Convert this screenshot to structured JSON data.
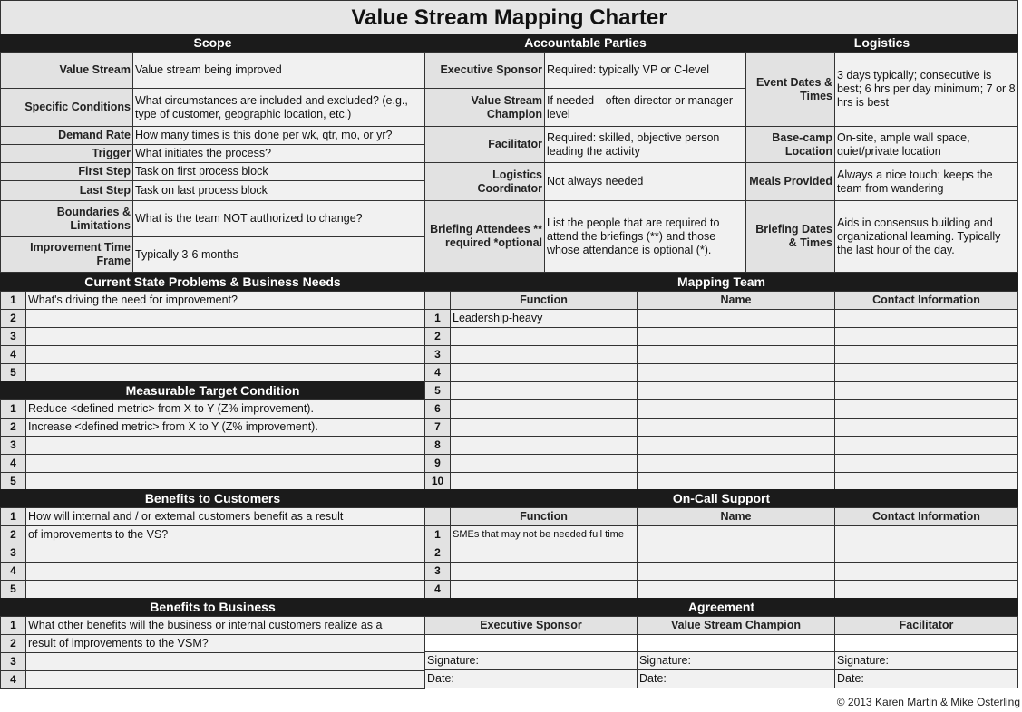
{
  "title": "Value Stream Mapping Charter",
  "sections": {
    "scope": "Scope",
    "accountable": "Accountable Parties",
    "logistics": "Logistics",
    "current_state": "Current State Problems & Business Needs",
    "mapping_team": "Mapping Team",
    "target": "Measurable Target Condition",
    "benefits_customers": "Benefits to Customers",
    "on_call": "On-Call Support",
    "benefits_business": "Benefits to Business",
    "agreement": "Agreement"
  },
  "scope": [
    {
      "label": "Value Stream",
      "value": "Value stream being improved"
    },
    {
      "label": "Specific Conditions",
      "value": "What circumstances are included and excluded? (e.g., type of customer, geographic location, etc.)"
    },
    {
      "label": "Demand Rate",
      "value": "How many times is this done per wk, qtr, mo, or yr?"
    },
    {
      "label": "Trigger",
      "value": "What initiates the process?"
    },
    {
      "label": "First Step",
      "value": "Task on first process block"
    },
    {
      "label": "Last Step",
      "value": "Task on last process block"
    },
    {
      "label": "Boundaries & Limitations",
      "value": "What is the team NOT authorized to change?"
    },
    {
      "label": "Improvement Time Frame",
      "value": "Typically 3-6 months"
    }
  ],
  "accountable": [
    {
      "label": "Executive Sponsor",
      "value": "Required: typically VP or  C-level"
    },
    {
      "label": "Value Stream Champion",
      "value": "If needed—often director or manager level"
    },
    {
      "label": "Facilitator",
      "value": "Required: skilled, objective person leading the activity"
    },
    {
      "label": "Logistics Coordinator",
      "value": "Not always needed"
    },
    {
      "label": "Briefing Attendees ** required *optional",
      "value": "List the people that are required to attend the briefings (**) and those whose attendance is optional (*)."
    }
  ],
  "logistics": [
    {
      "label": "Event Dates & Times",
      "value": "3 days typically; consecutive is best; 6 hrs per day minimum; 7 or 8 hrs is best"
    },
    {
      "label": "Base-camp Location",
      "value": "On-site, ample wall space, quiet/private location"
    },
    {
      "label": "Meals Provided",
      "value": "Always a nice touch; keeps the team from wandering"
    },
    {
      "label": "Briefing Dates & Times",
      "value": "Aids in consensus building and organizational learning. Typically the last hour of the day."
    }
  ],
  "current_state_rows": [
    {
      "n": "1",
      "text": "What's driving the need for improvement?"
    },
    {
      "n": "2",
      "text": ""
    },
    {
      "n": "3",
      "text": ""
    },
    {
      "n": "4",
      "text": ""
    },
    {
      "n": "5",
      "text": ""
    }
  ],
  "target_rows": [
    {
      "n": "1",
      "text": "Reduce <defined metric> from X to Y (Z% improvement)."
    },
    {
      "n": "2",
      "text": "Increase <defined metric> from X to Y (Z% improvement)."
    },
    {
      "n": "3",
      "text": ""
    },
    {
      "n": "4",
      "text": ""
    },
    {
      "n": "5",
      "text": ""
    }
  ],
  "benefits_customers_rows": [
    {
      "n": "1",
      "text": "How will internal and / or external customers benefit as a result"
    },
    {
      "n": "2",
      "text": "of improvements to the VS?"
    },
    {
      "n": "3",
      "text": ""
    },
    {
      "n": "4",
      "text": ""
    },
    {
      "n": "5",
      "text": ""
    }
  ],
  "benefits_business_rows": [
    {
      "n": "1",
      "text": "What other benefits will the business or internal customers realize as a"
    },
    {
      "n": "2",
      "text": "result of improvements to the VSM?"
    },
    {
      "n": "3",
      "text": ""
    },
    {
      "n": "4",
      "text": ""
    }
  ],
  "team_columns": [
    "Function",
    "Name",
    "Contact Information"
  ],
  "mapping_team_rows": [
    {
      "n": "1",
      "function": "Leadership-heavy"
    },
    {
      "n": "2",
      "function": ""
    },
    {
      "n": "3",
      "function": ""
    },
    {
      "n": "4",
      "function": ""
    },
    {
      "n": "5",
      "function": ""
    },
    {
      "n": "6",
      "function": ""
    },
    {
      "n": "7",
      "function": ""
    },
    {
      "n": "8",
      "function": ""
    },
    {
      "n": "9",
      "function": ""
    },
    {
      "n": "10",
      "function": ""
    }
  ],
  "on_call_rows": [
    {
      "n": "1",
      "function": "SMEs that may not be needed full time"
    },
    {
      "n": "2",
      "function": ""
    },
    {
      "n": "3",
      "function": ""
    },
    {
      "n": "4",
      "function": ""
    }
  ],
  "agreement": {
    "columns": [
      "Executive Sponsor",
      "Value Stream Champion",
      "Facilitator"
    ],
    "signature_label": "Signature:",
    "date_label": "Date:"
  },
  "copyright": "© 2013 Karen Martin & Mike Osterling"
}
